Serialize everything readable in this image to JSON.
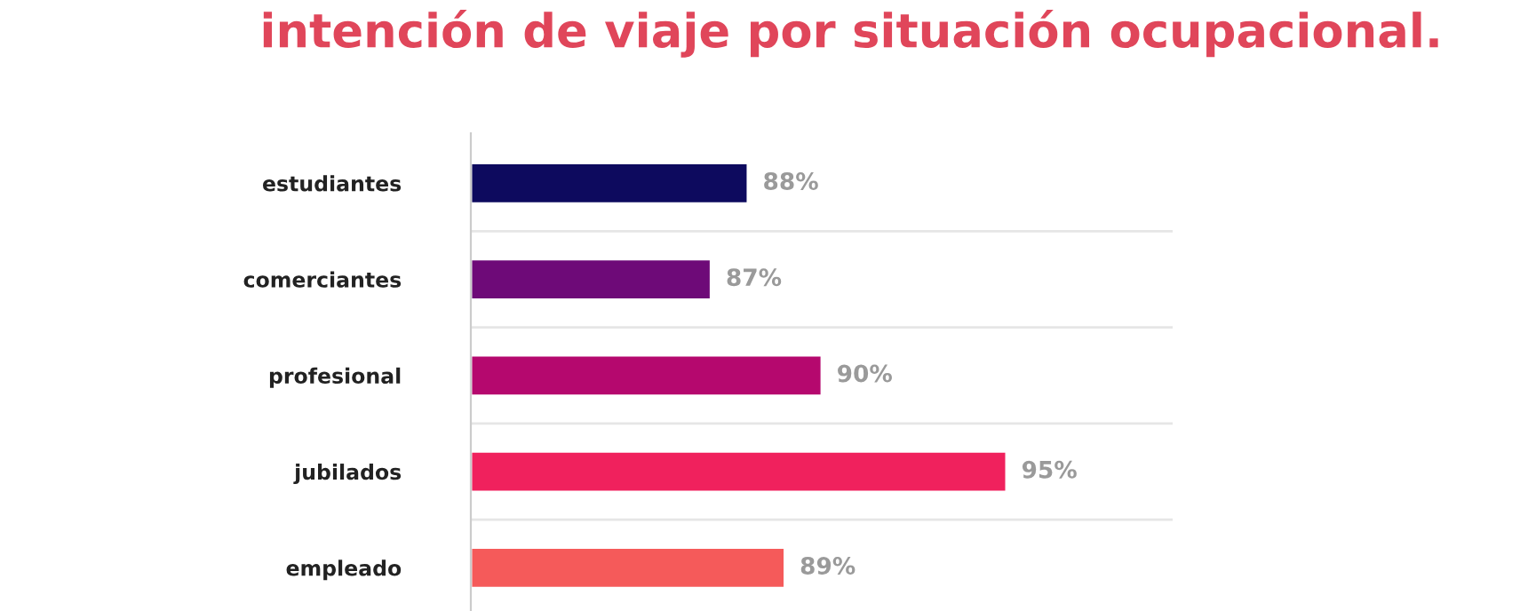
{
  "chart_data": {
    "type": "bar",
    "orientation": "horizontal",
    "title": "intención de viaje por situación ocupacional.",
    "categories": [
      "estudiantes",
      "comerciantes",
      "profesional",
      "jubilados",
      "empleado"
    ],
    "values": [
      88,
      87,
      90,
      95,
      89
    ],
    "colors": [
      "#0d0a5e",
      "#6e0a78",
      "#b5086e",
      "#f0215d",
      "#f55a5a"
    ],
    "value_labels": [
      "88%",
      "87%",
      "90%",
      "95%",
      "89%"
    ],
    "xlim": [
      80.5,
      99.5
    ],
    "tick_labels": "y",
    "grid": false,
    "legend": false
  }
}
